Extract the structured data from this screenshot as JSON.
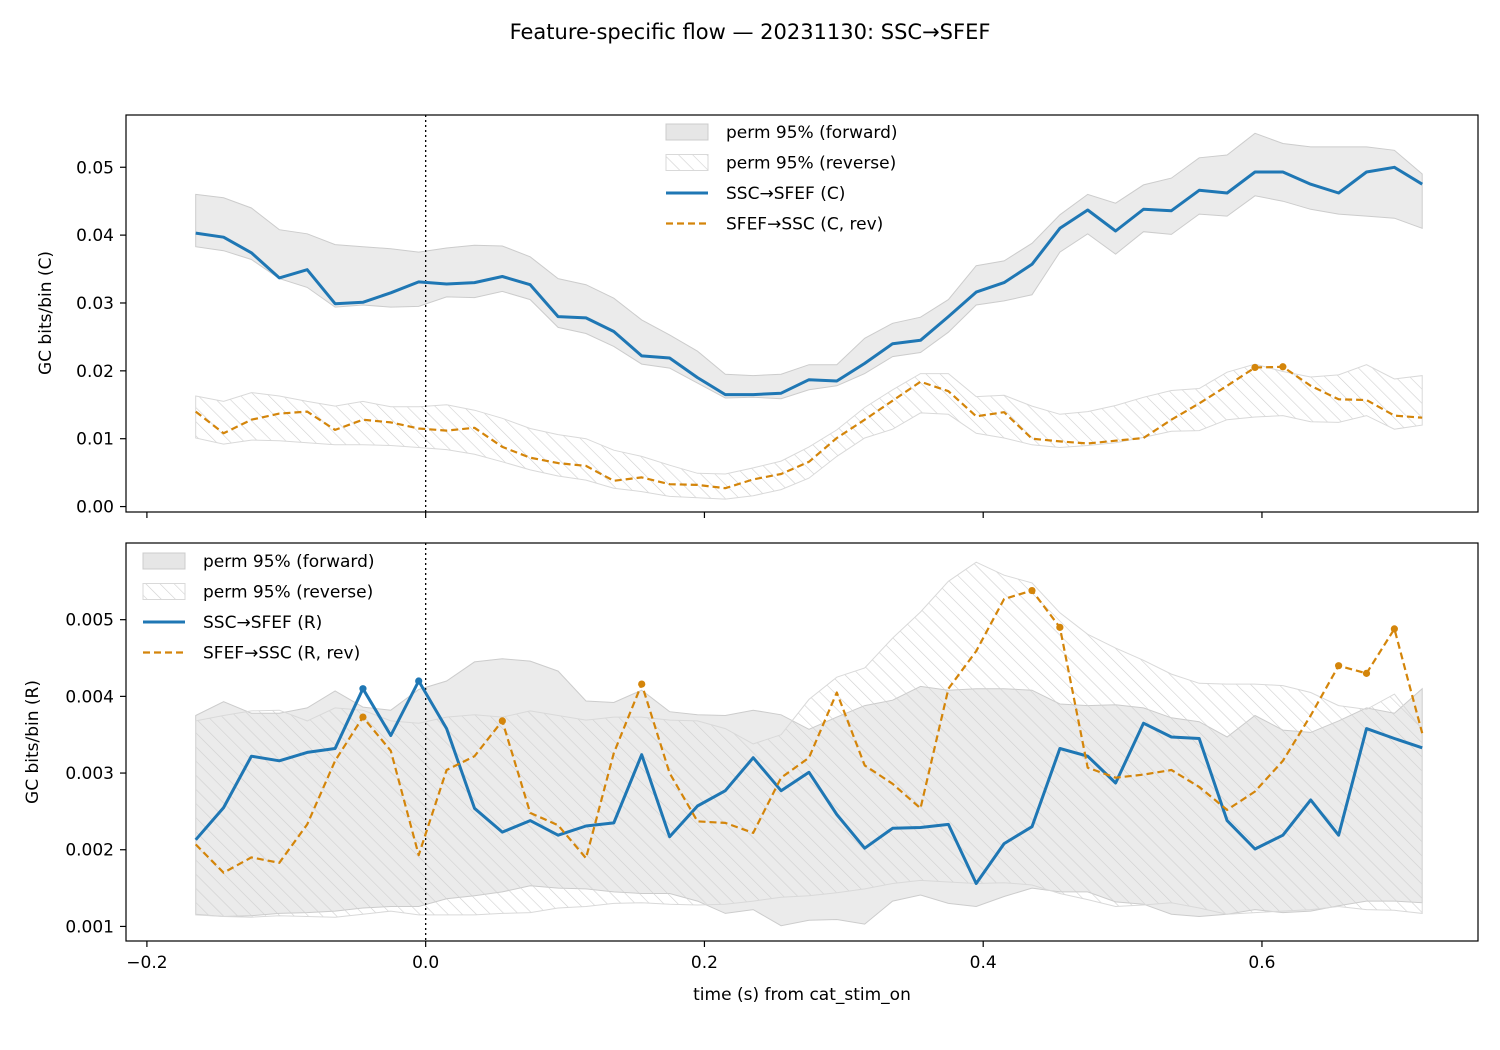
{
  "figure": {
    "title": "Feature-specific flow — 20231130: SSC→SFEF",
    "xlabel": "time (s) from cat_stim_on"
  },
  "colors": {
    "forward": "#1f77b4",
    "reverse": "#d4850a",
    "band_fill": "#e6e6e6",
    "band_edge": "#cccccc",
    "hatch": "#cfcfcf",
    "onset_line": "#000000"
  },
  "chart_data": [
    {
      "type": "line",
      "panel": "top",
      "ylabel": "GC bits/bin (C)",
      "xlim": [
        -0.215,
        0.755
      ],
      "ylim": [
        -0.0008,
        0.0577
      ],
      "xticks": [
        -0.2,
        0.0,
        0.2,
        0.4,
        0.6
      ],
      "yticks": [
        0.0,
        0.01,
        0.02,
        0.03,
        0.04,
        0.05
      ],
      "ytick_labels": [
        "0.00",
        "0.01",
        "0.02",
        "0.03",
        "0.04",
        "0.05"
      ],
      "show_xtick_labels": false,
      "onset_line_x": 0.0,
      "legend": {
        "position": "upper center",
        "entries": [
          "perm 95% (forward)",
          "perm 95% (reverse)",
          "SSC→SFEF (C)",
          "SFEF→SSC (C, rev)"
        ]
      },
      "x": [
        -0.165,
        -0.145,
        -0.125,
        -0.105,
        -0.085,
        -0.065,
        -0.045,
        -0.025,
        -0.005,
        0.015,
        0.035,
        0.055,
        0.075,
        0.095,
        0.115,
        0.135,
        0.155,
        0.175,
        0.195,
        0.215,
        0.235,
        0.255,
        0.275,
        0.295,
        0.315,
        0.335,
        0.355,
        0.375,
        0.395,
        0.415,
        0.435,
        0.455,
        0.475,
        0.495,
        0.515,
        0.535,
        0.555,
        0.575,
        0.595,
        0.615,
        0.635,
        0.655,
        0.675,
        0.695,
        0.715
      ],
      "series": [
        {
          "name": "SSC→SFEF (C)",
          "style": "solid",
          "values": [
            0.0403,
            0.0397,
            0.0374,
            0.0337,
            0.0349,
            0.0299,
            0.0301,
            0.0315,
            0.0331,
            0.0328,
            0.033,
            0.0339,
            0.0327,
            0.028,
            0.0278,
            0.0258,
            0.0222,
            0.0219,
            0.019,
            0.0165,
            0.0165,
            0.0167,
            0.0187,
            0.0185,
            0.0211,
            0.024,
            0.0245,
            0.028,
            0.0316,
            0.033,
            0.0357,
            0.041,
            0.0437,
            0.0406,
            0.0438,
            0.0436,
            0.0466,
            0.0462,
            0.0493,
            0.0493,
            0.0475,
            0.0462,
            0.0493,
            0.05,
            0.0475
          ],
          "markers_at": []
        },
        {
          "name": "SFEF→SSC (C, rev)",
          "style": "dashed",
          "values": [
            0.014,
            0.0108,
            0.0128,
            0.0137,
            0.014,
            0.0113,
            0.0128,
            0.0124,
            0.0115,
            0.0112,
            0.0116,
            0.0088,
            0.0072,
            0.0064,
            0.006,
            0.0038,
            0.0043,
            0.0033,
            0.0032,
            0.0027,
            0.004,
            0.0048,
            0.0066,
            0.0101,
            0.0128,
            0.0156,
            0.0184,
            0.017,
            0.0133,
            0.0139,
            0.01,
            0.0096,
            0.0093,
            0.0097,
            0.0101,
            0.0128,
            0.0152,
            0.0178,
            0.0205,
            0.0206,
            0.0178,
            0.0158,
            0.0157,
            0.0134,
            0.0131
          ],
          "markers_at": [
            38,
            39
          ]
        }
      ],
      "bands": [
        {
          "name": "perm 95% (forward)",
          "upper": [
            0.046,
            0.0455,
            0.044,
            0.0408,
            0.0402,
            0.0386,
            0.0383,
            0.038,
            0.0375,
            0.0381,
            0.0385,
            0.0384,
            0.0368,
            0.0336,
            0.0327,
            0.0307,
            0.0275,
            0.0253,
            0.0229,
            0.0195,
            0.0193,
            0.0195,
            0.0209,
            0.0209,
            0.0248,
            0.027,
            0.0279,
            0.0305,
            0.0355,
            0.0362,
            0.0388,
            0.043,
            0.046,
            0.0447,
            0.0474,
            0.0484,
            0.0514,
            0.0518,
            0.055,
            0.0535,
            0.053,
            0.053,
            0.053,
            0.0525,
            0.049
          ],
          "lower": [
            0.0383,
            0.0377,
            0.0364,
            0.0336,
            0.0323,
            0.0294,
            0.0297,
            0.0294,
            0.0295,
            0.0309,
            0.0308,
            0.0317,
            0.0305,
            0.0264,
            0.0255,
            0.0236,
            0.021,
            0.0204,
            0.0182,
            0.016,
            0.0161,
            0.0159,
            0.0172,
            0.0178,
            0.0196,
            0.0221,
            0.0227,
            0.0257,
            0.0297,
            0.0303,
            0.0312,
            0.0375,
            0.0402,
            0.0372,
            0.0405,
            0.0401,
            0.0431,
            0.0428,
            0.0458,
            0.045,
            0.0438,
            0.0431,
            0.0428,
            0.0425,
            0.041
          ]
        },
        {
          "name": "perm 95% (reverse)",
          "upper": [
            0.0163,
            0.0155,
            0.0168,
            0.0163,
            0.0155,
            0.0148,
            0.0155,
            0.0147,
            0.0147,
            0.015,
            0.0142,
            0.013,
            0.0115,
            0.0106,
            0.01,
            0.0083,
            0.0074,
            0.0061,
            0.0049,
            0.0048,
            0.0057,
            0.0067,
            0.0088,
            0.0113,
            0.0146,
            0.0172,
            0.0196,
            0.0196,
            0.0162,
            0.0164,
            0.0148,
            0.0136,
            0.014,
            0.0149,
            0.0161,
            0.0171,
            0.0174,
            0.0198,
            0.021,
            0.0199,
            0.0191,
            0.0194,
            0.0209,
            0.0188,
            0.0193
          ],
          "lower": [
            0.0101,
            0.0092,
            0.0098,
            0.0097,
            0.0094,
            0.0091,
            0.0091,
            0.009,
            0.0087,
            0.0084,
            0.0077,
            0.0066,
            0.0054,
            0.0045,
            0.0039,
            0.0027,
            0.0022,
            0.0015,
            0.0013,
            0.0011,
            0.0016,
            0.0025,
            0.0042,
            0.0074,
            0.0101,
            0.0114,
            0.0138,
            0.0136,
            0.0108,
            0.0101,
            0.0091,
            0.0087,
            0.009,
            0.0094,
            0.0102,
            0.0111,
            0.0112,
            0.0128,
            0.0132,
            0.0134,
            0.0125,
            0.0124,
            0.0134,
            0.0114,
            0.012
          ]
        }
      ]
    },
    {
      "type": "line",
      "panel": "bottom",
      "ylabel": "GC bits/bin (R)",
      "xlim": [
        -0.215,
        0.755
      ],
      "ylim": [
        0.00081,
        0.006
      ],
      "xticks": [
        -0.2,
        0.0,
        0.2,
        0.4,
        0.6
      ],
      "xtick_labels": [
        "−0.2",
        "0.0",
        "0.2",
        "0.4",
        "0.6"
      ],
      "yticks": [
        0.001,
        0.002,
        0.003,
        0.004,
        0.005
      ],
      "ytick_labels": [
        "0.001",
        "0.002",
        "0.003",
        "0.004",
        "0.005"
      ],
      "show_xtick_labels": true,
      "onset_line_x": 0.0,
      "legend": {
        "position": "upper left",
        "entries": [
          "perm 95% (forward)",
          "perm 95% (reverse)",
          "SSC→SFEF (R)",
          "SFEF→SSC (R, rev)"
        ]
      },
      "x": [
        -0.165,
        -0.145,
        -0.125,
        -0.105,
        -0.085,
        -0.065,
        -0.045,
        -0.025,
        -0.005,
        0.015,
        0.035,
        0.055,
        0.075,
        0.095,
        0.115,
        0.135,
        0.155,
        0.175,
        0.195,
        0.215,
        0.235,
        0.255,
        0.275,
        0.295,
        0.315,
        0.335,
        0.355,
        0.375,
        0.395,
        0.415,
        0.435,
        0.455,
        0.475,
        0.495,
        0.515,
        0.535,
        0.555,
        0.575,
        0.595,
        0.615,
        0.635,
        0.655,
        0.675,
        0.695,
        0.715
      ],
      "series": [
        {
          "name": "SSC→SFEF (R)",
          "style": "solid",
          "values": [
            0.00213,
            0.00255,
            0.00322,
            0.00316,
            0.00327,
            0.00332,
            0.0041,
            0.00349,
            0.0042,
            0.00358,
            0.00254,
            0.00223,
            0.00238,
            0.00219,
            0.00231,
            0.00235,
            0.00324,
            0.00217,
            0.00257,
            0.00277,
            0.0032,
            0.00277,
            0.00301,
            0.00246,
            0.00202,
            0.00228,
            0.00229,
            0.00233,
            0.00156,
            0.00208,
            0.0023,
            0.00332,
            0.00322,
            0.00287,
            0.00365,
            0.00347,
            0.00345,
            0.00238,
            0.00201,
            0.00219,
            0.00265,
            0.00219,
            0.00358,
            0.00345,
            0.00333
          ],
          "markers_at": [
            6,
            8
          ]
        },
        {
          "name": "SFEF→SSC (R, rev)",
          "style": "dashed",
          "values": [
            0.00207,
            0.0017,
            0.0019,
            0.00183,
            0.00233,
            0.00316,
            0.00373,
            0.00329,
            0.00193,
            0.00304,
            0.00322,
            0.00368,
            0.00248,
            0.00232,
            0.00189,
            0.00326,
            0.00416,
            0.003,
            0.00237,
            0.00235,
            0.00222,
            0.00294,
            0.0032,
            0.00405,
            0.0031,
            0.00286,
            0.00254,
            0.0041,
            0.00459,
            0.00527,
            0.00538,
            0.0049,
            0.00307,
            0.00294,
            0.00298,
            0.00304,
            0.00282,
            0.00252,
            0.00276,
            0.00316,
            0.00375,
            0.0044,
            0.0043,
            0.00488,
            0.00352
          ],
          "markers_at": [
            6,
            11,
            16,
            30,
            31,
            41,
            42,
            43
          ]
        }
      ],
      "bands": [
        {
          "name": "perm 95% (forward)",
          "upper": [
            0.00375,
            0.00393,
            0.00378,
            0.00378,
            0.00385,
            0.00407,
            0.00386,
            0.00382,
            0.00409,
            0.0042,
            0.00445,
            0.00449,
            0.00446,
            0.00433,
            0.00394,
            0.00392,
            0.00408,
            0.0038,
            0.00376,
            0.00375,
            0.00382,
            0.00376,
            0.00357,
            0.00373,
            0.00388,
            0.00395,
            0.00413,
            0.00408,
            0.0041,
            0.0041,
            0.00408,
            0.0039,
            0.00388,
            0.00389,
            0.00385,
            0.00372,
            0.00367,
            0.00347,
            0.00375,
            0.00356,
            0.00353,
            0.00368,
            0.00385,
            0.00378,
            0.0041
          ],
          "lower": [
            0.00116,
            0.00113,
            0.00114,
            0.00117,
            0.00118,
            0.0012,
            0.00124,
            0.00126,
            0.00126,
            0.00136,
            0.0014,
            0.00145,
            0.00153,
            0.0015,
            0.00149,
            0.00145,
            0.00143,
            0.00143,
            0.00133,
            0.00117,
            0.00122,
            0.00101,
            0.00108,
            0.00109,
            0.00103,
            0.00133,
            0.00141,
            0.0013,
            0.00126,
            0.00139,
            0.0015,
            0.00145,
            0.00145,
            0.00132,
            0.00129,
            0.00116,
            0.00113,
            0.00116,
            0.00122,
            0.00118,
            0.0012,
            0.00127,
            0.00133,
            0.00133,
            0.00131
          ]
        },
        {
          "name": "perm 95% (reverse)",
          "upper": [
            0.00368,
            0.00375,
            0.00381,
            0.00382,
            0.00368,
            0.00385,
            0.00382,
            0.00368,
            0.00365,
            0.00373,
            0.00376,
            0.00373,
            0.00381,
            0.00375,
            0.00369,
            0.00373,
            0.00373,
            0.00369,
            0.00368,
            0.00358,
            0.00338,
            0.0035,
            0.00396,
            0.00425,
            0.00437,
            0.00476,
            0.0051,
            0.0055,
            0.00575,
            0.00558,
            0.00548,
            0.00509,
            0.00481,
            0.00463,
            0.00447,
            0.00429,
            0.00417,
            0.00416,
            0.00416,
            0.00414,
            0.00405,
            0.00388,
            0.00383,
            0.00403,
            0.00357
          ],
          "lower": [
            0.00115,
            0.00113,
            0.00112,
            0.00114,
            0.00113,
            0.00112,
            0.00116,
            0.0012,
            0.00115,
            0.00115,
            0.00115,
            0.00117,
            0.00118,
            0.00124,
            0.00126,
            0.0013,
            0.00131,
            0.00129,
            0.00128,
            0.00129,
            0.00133,
            0.00138,
            0.0014,
            0.00144,
            0.00149,
            0.00156,
            0.0016,
            0.00158,
            0.00156,
            0.00157,
            0.00154,
            0.00143,
            0.00135,
            0.00126,
            0.00128,
            0.00131,
            0.00124,
            0.00116,
            0.00118,
            0.0012,
            0.00122,
            0.00126,
            0.00122,
            0.00121,
            0.00117
          ]
        }
      ]
    }
  ]
}
